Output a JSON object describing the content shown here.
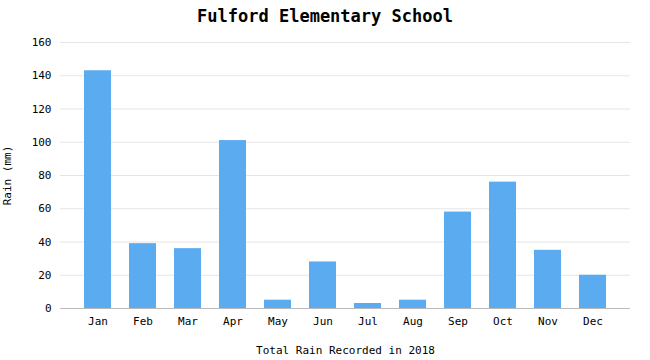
{
  "chart_data": {
    "type": "bar",
    "title": "Fulford Elementary School",
    "xlabel": "Total Rain Recorded in 2018",
    "ylabel": "Rain (mm)",
    "categories": [
      "Jan",
      "Feb",
      "Mar",
      "Apr",
      "May",
      "Jun",
      "Jul",
      "Aug",
      "Sep",
      "Oct",
      "Nov",
      "Dec"
    ],
    "values": [
      143,
      39,
      36,
      101,
      5,
      28,
      3,
      5,
      58,
      76,
      35,
      20
    ],
    "color": "#5aabf0",
    "ylim": [
      0,
      160
    ],
    "yticks": [
      0,
      20,
      40,
      60,
      80,
      100,
      120,
      140,
      160
    ],
    "grid": true
  }
}
